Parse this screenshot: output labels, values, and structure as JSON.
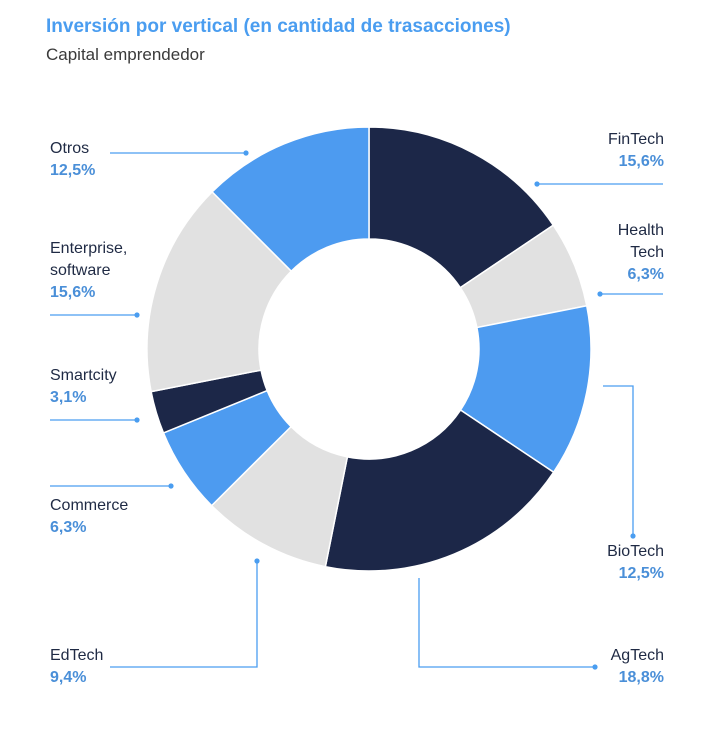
{
  "header": {
    "title": "Inversión por vertical (en cantidad de trasacciones)",
    "subtitle": "Capital emprendedor"
  },
  "colors": {
    "dark": "#1c2748",
    "light": "#e1e1e1",
    "blue": "#4d9bf0",
    "leader": "#4a9df0"
  },
  "chart_data": {
    "type": "pie",
    "donut": true,
    "title": "Inversión por vertical (en cantidad de trasacciones)",
    "subtitle": "Capital emprendedor",
    "unit": "%",
    "slices": [
      {
        "label": "FinTech",
        "value": 15.6,
        "display": "15,6%",
        "color": "dark"
      },
      {
        "label": "Health Tech",
        "value": 6.3,
        "display": "6,3%",
        "color": "light"
      },
      {
        "label": "BioTech",
        "value": 12.5,
        "display": "12,5%",
        "color": "blue"
      },
      {
        "label": "AgTech",
        "value": 18.8,
        "display": "18,8%",
        "color": "dark"
      },
      {
        "label": "EdTech",
        "value": 9.4,
        "display": "9,4%",
        "color": "light"
      },
      {
        "label": "Commerce",
        "value": 6.3,
        "display": "6,3%",
        "color": "blue"
      },
      {
        "label": "Smartcity",
        "value": 3.1,
        "display": "3,1%",
        "color": "dark"
      },
      {
        "label": "Enterprise, software",
        "value": 15.6,
        "display": "15,6%",
        "color": "light"
      },
      {
        "label": "Otros",
        "value": 12.5,
        "display": "12,5%",
        "color": "blue"
      }
    ]
  },
  "labels": {
    "fintech": {
      "name": "FinTech",
      "pct": "15,6%"
    },
    "health": {
      "name": "Health\nTech",
      "pct": "6,3%"
    },
    "biotech": {
      "name": "BioTech",
      "pct": "12,5%"
    },
    "agtech": {
      "name": "AgTech",
      "pct": "18,8%"
    },
    "edtech": {
      "name": "EdTech",
      "pct": "9,4%"
    },
    "commerce": {
      "name": "Commerce",
      "pct": "6,3%"
    },
    "smartcity": {
      "name": "Smartcity",
      "pct": "3,1%"
    },
    "enterprise": {
      "name": "Enterprise,\nsoftware",
      "pct": "15,6%"
    },
    "otros": {
      "name": "Otros",
      "pct": "12,5%"
    }
  }
}
